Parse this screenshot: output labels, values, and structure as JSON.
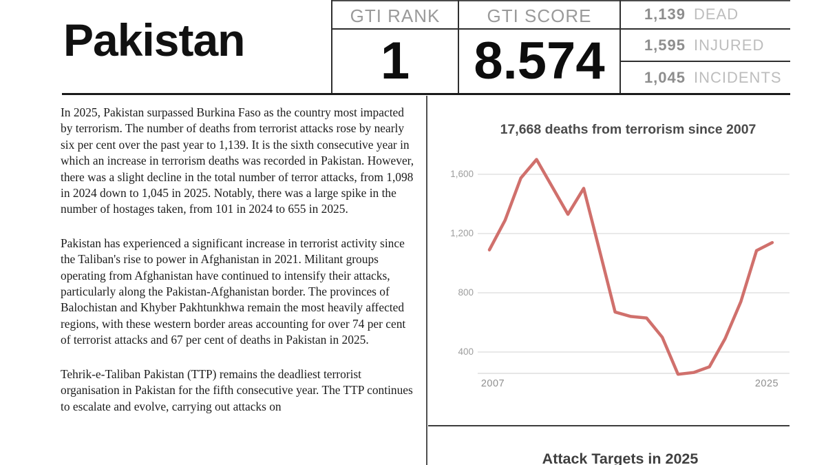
{
  "header": {
    "country": "Pakistan",
    "rank_label": "GTI RANK",
    "rank_value": "1",
    "score_label": "GTI SCORE",
    "score_value": "8.574",
    "stats": [
      {
        "value": "1,139",
        "label": "DEAD"
      },
      {
        "value": "1,595",
        "label": "INJURED"
      },
      {
        "value": "1,045",
        "label": "INCIDENTS"
      }
    ]
  },
  "article": {
    "paragraphs": [
      "In 2025, Pakistan surpassed Burkina Faso as the country most impacted by terrorism. The number of deaths from terrorist attacks rose by nearly six per cent over the past year to 1,139. It is the sixth consecutive year in which an increase in terrorism deaths was recorded in Pakistan. However, there was a slight decline in the total number of terror attacks, from 1,098 in 2024 down to 1,045 in 2025. Notably, there was a large spike in the number of hostages taken, from 101 in 2024 to 655 in 2025.",
      "Pakistan has experienced a significant increase in terrorist activity since the Taliban's rise to power in Afghanistan in 2021. Militant groups operating from Afghanistan have continued to intensify their attacks, particularly along the Pakistan-Afghanistan border. The provinces of Balochistan and Khyber Pakhtunkhwa remain the most heavily affected regions, with these western border areas accounting for over 74 per cent of terrorist attacks and 67 per cent of deaths in Pakistan in 2025.",
      "Tehrik-e-Taliban Pakistan (TTP) remains the deadliest terrorist organisation in Pakistan for the fifth consecutive year. The TTP continues to escalate and evolve, carrying out attacks on"
    ]
  },
  "chart_data": {
    "type": "line",
    "title": "17,668 deaths from terrorism since 2007",
    "x": [
      2007,
      2008,
      2009,
      2010,
      2011,
      2012,
      2013,
      2014,
      2015,
      2016,
      2017,
      2018,
      2019,
      2020,
      2021,
      2022,
      2023,
      2024,
      2025
    ],
    "series": [
      {
        "name": "Deaths from terrorism",
        "values": [
          1090,
          1290,
          1575,
          1700,
          1515,
          1330,
          1505,
          1090,
          670,
          640,
          630,
          500,
          250,
          262,
          300,
          490,
          740,
          1085,
          1139
        ]
      }
    ],
    "ytick_values": [
      1600,
      1200,
      800,
      400
    ],
    "ytick_labels": [
      "1,600",
      "1,200",
      "800",
      "400"
    ],
    "xtick_labels": [
      "2007",
      "2025"
    ],
    "ylim": [
      230,
      1780
    ],
    "xlabel": "",
    "ylabel": "",
    "grid": true,
    "legend_position": "none",
    "line_color": "#d0706c",
    "grid_color": "#dcdcdc"
  },
  "next_section": {
    "title": "Attack Targets in 2025"
  }
}
